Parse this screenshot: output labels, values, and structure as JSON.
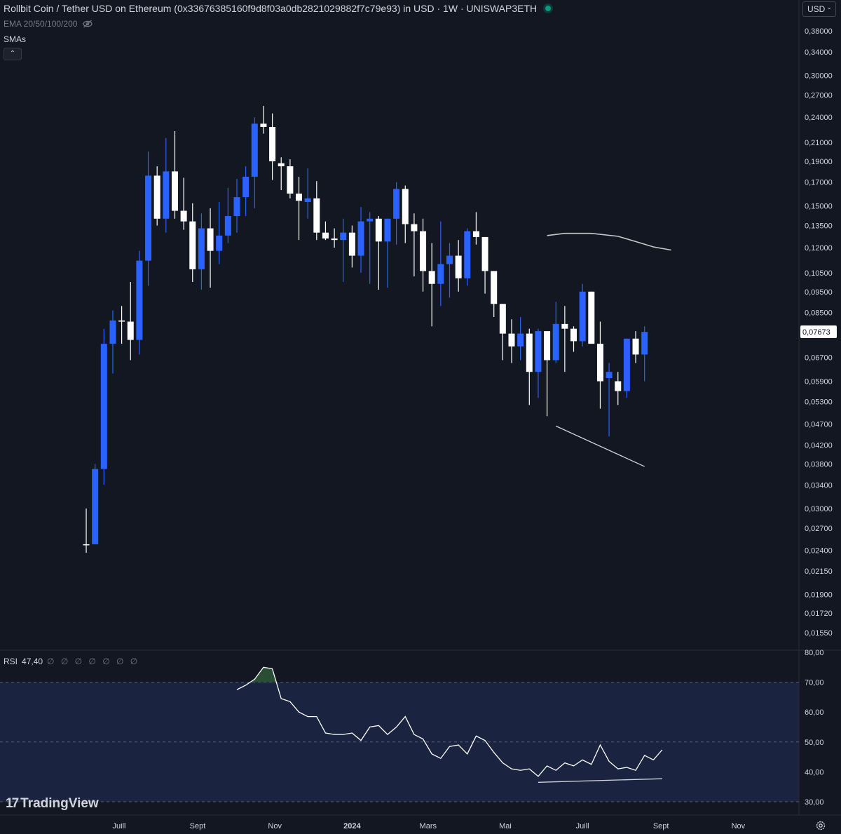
{
  "header": {
    "title": "Rollbit Coin / Tether USD on Ethereum (0x33676385160f9d8f03a0db2821029882f7c79e93) in USD · 1W · UNISWAP3ETH",
    "ema_label": "EMA 20/50/100/200",
    "smas_label": "SMAs",
    "currency": "USD",
    "eye_icon": "eye-off-icon",
    "collapse_icon": "chevron-up-icon"
  },
  "branding": {
    "logo_text": "TradingView"
  },
  "colors": {
    "bull": "#2962ff",
    "bear": "#ffffff",
    "background": "#131722",
    "rsi_band": "#1a2340",
    "text": "#d1d4dc"
  },
  "chart_data": [
    {
      "type": "candlestick",
      "scale": "log",
      "y_ticks": [
        "0,38000",
        "0,34000",
        "0,30000",
        "0,27000",
        "0,24000",
        "0,21000",
        "0,19000",
        "0,17000",
        "0,15000",
        "0,13500",
        "0,12000",
        "0,10500",
        "0,09500",
        "0,08500",
        "0,07673",
        "0,06700",
        "0,05900",
        "0,05300",
        "0,04700",
        "0,04200",
        "0,03800",
        "0,03400",
        "0,03000",
        "0,02700",
        "0,02400",
        "0,02150",
        "0,01900",
        "0,01720",
        "0,01550"
      ],
      "y_tick_values": [
        0.38,
        0.34,
        0.3,
        0.27,
        0.24,
        0.21,
        0.19,
        0.17,
        0.15,
        0.135,
        0.12,
        0.105,
        0.095,
        0.085,
        0.07673,
        0.067,
        0.059,
        0.053,
        0.047,
        0.042,
        0.038,
        0.034,
        0.03,
        0.027,
        0.024,
        0.0215,
        0.019,
        0.0172,
        0.0155
      ],
      "last_price": "0,07673",
      "x_ticks": [
        "Juill",
        "Sept",
        "Nov",
        "2024",
        "Mars",
        "Mai",
        "Juill",
        "Sept",
        "Nov"
      ],
      "x_tick_dates": [
        "2023-07-01",
        "2023-09-01",
        "2023-11-01",
        "2024-01-01",
        "2024-03-01",
        "2024-05-01",
        "2024-07-01",
        "2024-09-01",
        "2024-11-01"
      ],
      "start_date": "2023-06-05",
      "candles": [
        [
          0.0248,
          0.03,
          0.0237,
          0.0247
        ],
        [
          0.0248,
          0.038,
          0.025,
          0.037
        ],
        [
          0.037,
          0.078,
          0.034,
          0.072
        ],
        [
          0.072,
          0.086,
          0.0615,
          0.0815
        ],
        [
          0.0815,
          0.088,
          0.072,
          0.081
        ],
        [
          0.081,
          0.1,
          0.066,
          0.0735
        ],
        [
          0.0735,
          0.118,
          0.068,
          0.112
        ],
        [
          0.112,
          0.2,
          0.098,
          0.176
        ],
        [
          0.176,
          0.185,
          0.135,
          0.14
        ],
        [
          0.14,
          0.215,
          0.13,
          0.18
        ],
        [
          0.18,
          0.223,
          0.14,
          0.146
        ],
        [
          0.146,
          0.174,
          0.132,
          0.138
        ],
        [
          0.138,
          0.152,
          0.1,
          0.107
        ],
        [
          0.107,
          0.144,
          0.096,
          0.133
        ],
        [
          0.133,
          0.148,
          0.097,
          0.118
        ],
        [
          0.118,
          0.153,
          0.11,
          0.128
        ],
        [
          0.128,
          0.165,
          0.123,
          0.142
        ],
        [
          0.142,
          0.173,
          0.13,
          0.157
        ],
        [
          0.157,
          0.185,
          0.142,
          0.175
        ],
        [
          0.175,
          0.24,
          0.148,
          0.232
        ],
        [
          0.232,
          0.255,
          0.22,
          0.228
        ],
        [
          0.228,
          0.245,
          0.172,
          0.19
        ],
        [
          0.188,
          0.194,
          0.163,
          0.185
        ],
        [
          0.185,
          0.192,
          0.156,
          0.16
        ],
        [
          0.16,
          0.175,
          0.125,
          0.154
        ],
        [
          0.153,
          0.183,
          0.14,
          0.156
        ],
        [
          0.156,
          0.171,
          0.125,
          0.13
        ],
        [
          0.13,
          0.138,
          0.125,
          0.126
        ],
        [
          0.126,
          0.133,
          0.12,
          0.125
        ],
        [
          0.125,
          0.14,
          0.1,
          0.13
        ],
        [
          0.13,
          0.135,
          0.108,
          0.115
        ],
        [
          0.115,
          0.149,
          0.105,
          0.138
        ],
        [
          0.138,
          0.145,
          0.099,
          0.14
        ],
        [
          0.14,
          0.142,
          0.096,
          0.124
        ],
        [
          0.124,
          0.14,
          0.097,
          0.14
        ],
        [
          0.14,
          0.17,
          0.122,
          0.164
        ],
        [
          0.164,
          0.167,
          0.123,
          0.136
        ],
        [
          0.136,
          0.144,
          0.103,
          0.131
        ],
        [
          0.131,
          0.14,
          0.095,
          0.106
        ],
        [
          0.106,
          0.123,
          0.079,
          0.099
        ],
        [
          0.099,
          0.138,
          0.088,
          0.11
        ],
        [
          0.11,
          0.123,
          0.092,
          0.115
        ],
        [
          0.115,
          0.125,
          0.095,
          0.102
        ],
        [
          0.102,
          0.133,
          0.098,
          0.131
        ],
        [
          0.131,
          0.145,
          0.122,
          0.127
        ],
        [
          0.127,
          0.127,
          0.094,
          0.106
        ],
        [
          0.106,
          0.106,
          0.083,
          0.089
        ],
        [
          0.089,
          0.089,
          0.066,
          0.076
        ],
        [
          0.076,
          0.082,
          0.065,
          0.071
        ],
        [
          0.071,
          0.083,
          0.066,
          0.076
        ],
        [
          0.076,
          0.078,
          0.052,
          0.062
        ],
        [
          0.062,
          0.078,
          0.054,
          0.077
        ],
        [
          0.077,
          0.077,
          0.049,
          0.066
        ],
        [
          0.066,
          0.09,
          0.065,
          0.08
        ],
        [
          0.08,
          0.088,
          0.062,
          0.078
        ],
        [
          0.078,
          0.079,
          0.069,
          0.073
        ],
        [
          0.073,
          0.099,
          0.071,
          0.095
        ],
        [
          0.095,
          0.095,
          0.073,
          0.072
        ],
        [
          0.072,
          0.081,
          0.051,
          0.059
        ],
        [
          0.06,
          0.065,
          0.044,
          0.062
        ],
        [
          0.059,
          0.062,
          0.052,
          0.056
        ],
        [
          0.056,
          0.074,
          0.054,
          0.074
        ],
        [
          0.074,
          0.077,
          0.065,
          0.068
        ],
        [
          0.068,
          0.079,
          0.059,
          0.0767
        ]
      ],
      "moving_average": [
        {
          "date": "2024-06-03",
          "value": 0.128
        },
        {
          "date": "2024-06-17",
          "value": 0.1295
        },
        {
          "date": "2024-07-08",
          "value": 0.1295
        },
        {
          "date": "2024-07-29",
          "value": 0.1275
        },
        {
          "date": "2024-08-12",
          "value": 0.124
        },
        {
          "date": "2024-08-26",
          "value": 0.1205
        },
        {
          "date": "2024-09-09",
          "value": 0.1185
        }
      ],
      "trendline": {
        "start": {
          "date": "2024-06-10",
          "value": 0.0465
        },
        "end": {
          "date": "2024-08-19",
          "value": 0.0375
        }
      }
    },
    {
      "type": "line",
      "name": "RSI",
      "current_value": "47,40",
      "flags": "∅ ∅ ∅ ∅ ∅ ∅ ∅",
      "y_ticks": [
        "80,00",
        "70,00",
        "60,00",
        "50,00",
        "40,00",
        "30,00"
      ],
      "y_tick_values": [
        80,
        70,
        60,
        50,
        40,
        30
      ],
      "overbought": 70,
      "oversold": 30,
      "midline": 50,
      "values": [
        67.5,
        69,
        71,
        75,
        74.5,
        64.5,
        63.5,
        60,
        58.5,
        58.5,
        53,
        52.5,
        52.5,
        53,
        50.5,
        55,
        55.5,
        52.5,
        55,
        58.5,
        52.5,
        51,
        46,
        44.5,
        48.5,
        49,
        46,
        52,
        50.5,
        46.5,
        43,
        41,
        40.5,
        41,
        38.5,
        42,
        40.5,
        43,
        42,
        44,
        42.5,
        49,
        43.5,
        41,
        41.5,
        40.5,
        45.5,
        44,
        47.4
      ],
      "values_start_date": "2023-10-02",
      "trendline": {
        "start": {
          "date": "2024-05-27",
          "value": 36.5
        },
        "end": {
          "date": "2024-09-02",
          "value": 37.7
        }
      }
    }
  ]
}
